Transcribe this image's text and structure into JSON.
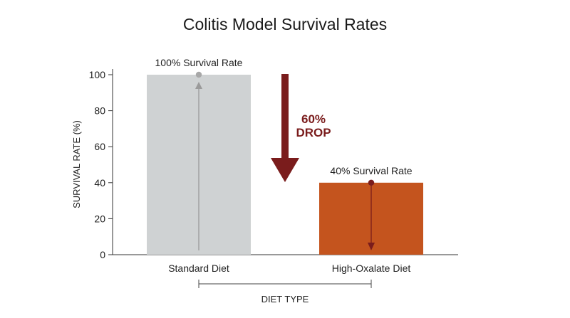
{
  "chart_data": {
    "type": "bar",
    "title": "Colitis Model Survival Rates",
    "xlabel": "DIET TYPE",
    "ylabel": "SURVIVAL RATE (%)",
    "ylim": [
      0,
      100
    ],
    "yticks": [
      0,
      20,
      40,
      60,
      80,
      100
    ],
    "categories": [
      "Standard Diet",
      "High-Oxalate Diet"
    ],
    "values": [
      100,
      40
    ],
    "data_labels": [
      "100% Survival Rate",
      "40% Survival Rate"
    ],
    "colors": [
      "#cfd2d3",
      "#c4541e"
    ],
    "annotation": {
      "line1": "60%",
      "line2": "DROP",
      "color": "#7a1c1c"
    },
    "grid": false
  }
}
